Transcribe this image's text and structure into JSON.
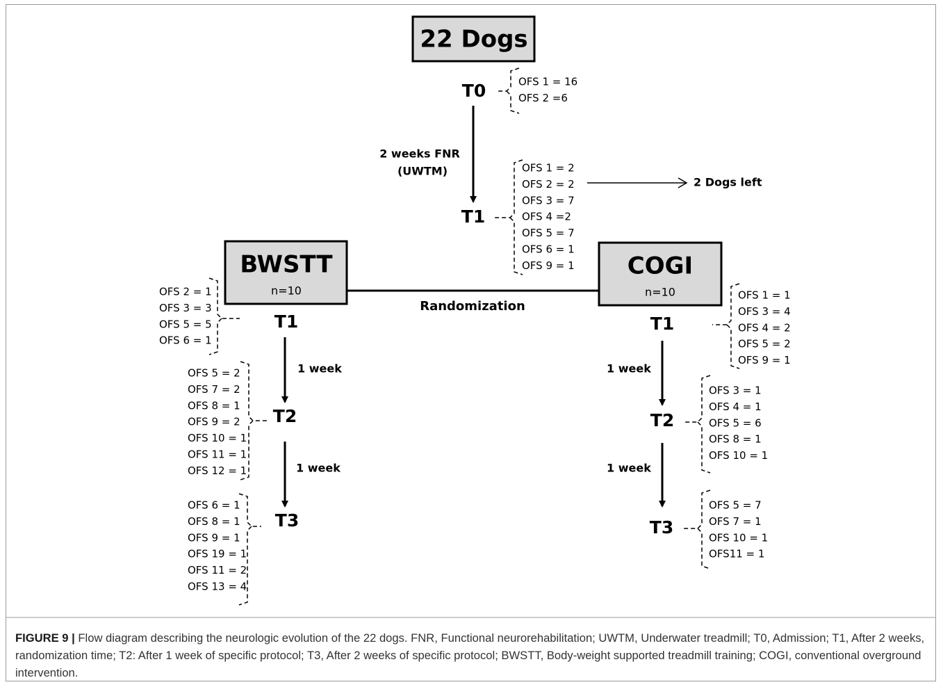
{
  "top_box": {
    "title": "22 Dogs"
  },
  "t0": {
    "label": "T0",
    "ofs": [
      "OFS 1 = 16",
      "OFS 2 =6"
    ]
  },
  "fnr_edge": {
    "lines": [
      "2 weeks FNR",
      "(UWTM)"
    ]
  },
  "t1": {
    "label": "T1",
    "ofs": [
      "OFS 1 = 2",
      "OFS 2 = 2",
      "OFS 3 = 7",
      "OFS 4 =2",
      "OFS 5 = 7",
      "OFS 6 = 1",
      "OFS 9 = 1"
    ]
  },
  "dogs_left": "2 Dogs left",
  "randomization": "Randomization",
  "bwstt": {
    "title": "BWSTT",
    "n": "n=10",
    "stages": [
      {
        "label": "T1",
        "ofs": [
          "OFS 2 = 1",
          "OFS 3 = 3",
          "OFS 5 = 5",
          "OFS 6 = 1"
        ]
      },
      {
        "label": "T2",
        "edge": "1 week",
        "ofs": [
          "OFS 5 = 2",
          "OFS 7 = 2",
          "OFS 8 = 1",
          "OFS 9 = 2",
          "OFS 10 = 1",
          "OFS 11 = 1",
          "OFS 12 = 1"
        ]
      },
      {
        "label": "T3",
        "edge": "1 week",
        "ofs": [
          "OFS 6 = 1",
          "OFS 8 = 1",
          "OFS 9 = 1",
          "OFS 19 = 1",
          "OFS 11 = 2",
          "OFS 13 = 4"
        ]
      }
    ]
  },
  "cogi": {
    "title": "COGI",
    "n": "n=10",
    "stages": [
      {
        "label": "T1",
        "ofs": [
          "OFS 1 = 1",
          "OFS 3 = 4",
          "OFS 4 = 2",
          "OFS 5 = 2",
          "OFS 9 = 1"
        ]
      },
      {
        "label": "T2",
        "edge": "1 week",
        "ofs": [
          "OFS 3 = 1",
          "OFS 4 = 1",
          "OFS 5 = 6",
          "OFS 8 = 1",
          "OFS 10 = 1"
        ]
      },
      {
        "label": "T3",
        "edge": "1 week",
        "ofs": [
          "OFS 5 = 7",
          "OFS 7 = 1",
          "OFS 10 = 1",
          "OFS11 = 1"
        ]
      }
    ]
  },
  "caption": {
    "label": "FIGURE 9 |",
    "text": "Flow diagram describing the neurologic evolution of the 22 dogs. FNR, Functional neurorehabilitation; UWTM, Underwater treadmill; T0, Admission; T1, After 2 weeks, randomization time; T2: After 1 week of specific protocol; T3, After 2 weeks of specific protocol; BWSTT, Body-weight supported treadmill training; COGI, conventional overground intervention."
  }
}
